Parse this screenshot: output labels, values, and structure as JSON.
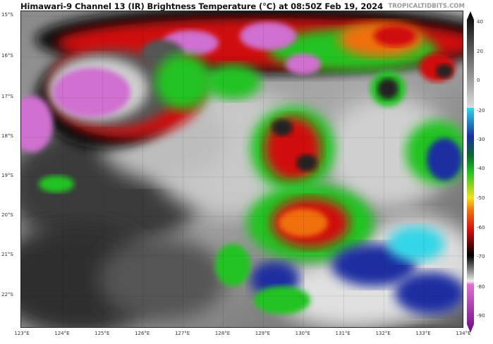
{
  "title": "Himawari-9 Channel 13 (IR) Brightness Temperature (°C) at 08:50Z Feb 19, 2024",
  "credit": "TROPICALTIDBITS.COM",
  "latitude_labels": [
    "15°S",
    "16°S",
    "17°S",
    "18°S",
    "19°S",
    "20°S",
    "21°S",
    "22°S"
  ],
  "longitude_labels": [
    "123°E",
    "124°E",
    "125°E",
    "126°E",
    "127°E",
    "128°E",
    "129°E",
    "130°E",
    "131°E",
    "132°E",
    "133°E",
    "134°E"
  ],
  "colorbar": {
    "unit": "°C",
    "labels": [
      "40",
      "20",
      "0",
      "-20",
      "-30",
      "-40",
      "-50",
      "-60",
      "-70",
      "-80",
      "-90"
    ],
    "colors": {
      "warm": "#000000",
      "neutral": "#ffffff",
      "cyan": "#33d6e8",
      "blue": "#1a2fa0",
      "green": "#22c322",
      "yellow": "#f0e020",
      "red": "#d01010",
      "black": "#000000",
      "pink": "#e070d0",
      "purple": "#7a1090"
    }
  }
}
